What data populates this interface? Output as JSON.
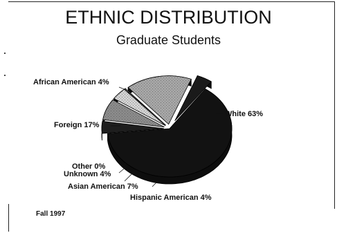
{
  "chart_data": {
    "type": "pie",
    "title": "ETHNIC DISTRIBUTION",
    "subtitle": "Graduate Students",
    "footnote": "Fall 1997",
    "slices": [
      {
        "label": "White",
        "value": 63,
        "value_label": "63%",
        "display": "White 63%",
        "fill": "#121212"
      },
      {
        "label": "Hispanic American",
        "value": 4,
        "value_label": "4%",
        "display": "Hispanic American 4%",
        "fill": "#1e1e1e"
      },
      {
        "label": "Asian American",
        "value": 7,
        "value_label": "7%",
        "display": "Asian American 7%",
        "fill": "#8a8a8a"
      },
      {
        "label": "Unknown",
        "value": 4,
        "value_label": "4%",
        "display": "Unknown 4%",
        "fill": "#d2d2d2"
      },
      {
        "label": "Other",
        "value": 0,
        "value_label": "0%",
        "display": "Other 0%",
        "fill": "#ffffff"
      },
      {
        "label": "Foreign",
        "value": 17,
        "value_label": "17%",
        "display": "Foreign 17%",
        "fill": "#a6a6a6"
      },
      {
        "label": "African American",
        "value": 4,
        "value_label": "4%",
        "display": "African American 4%",
        "fill": "#1a1a1a"
      }
    ],
    "style": "3d-exploded",
    "legend": "none"
  }
}
